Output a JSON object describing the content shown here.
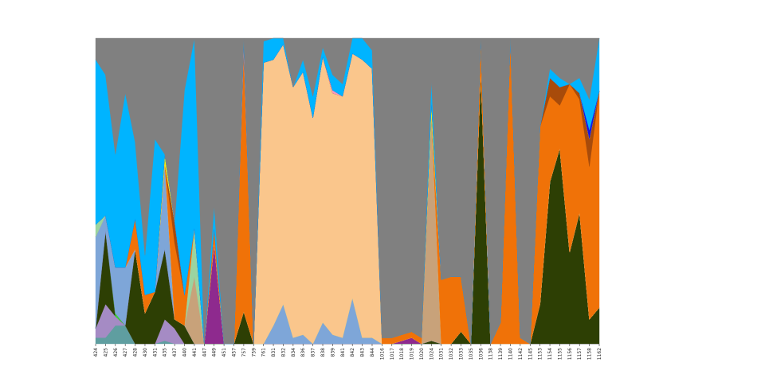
{
  "chart_data": {
    "type": "area",
    "stacked": true,
    "normalized": true,
    "title": "",
    "xlabel": "",
    "ylabel": "",
    "ylim": [
      0,
      1
    ],
    "grid": false,
    "legend": "none",
    "categories": [
      "424",
      "425",
      "426",
      "427",
      "428",
      "430",
      "431",
      "435",
      "437",
      "440",
      "441",
      "447",
      "449",
      "451",
      "457",
      "757",
      "759",
      "761",
      "831",
      "832",
      "834",
      "836",
      "837",
      "838",
      "839",
      "841",
      "842",
      "843",
      "844",
      "1016",
      "1017",
      "1018",
      "1019",
      "1020",
      "1024",
      "1031",
      "1032",
      "1033",
      "1035",
      "1036",
      "1138",
      "1139",
      "1140",
      "1142",
      "1145",
      "1153",
      "1154",
      "1155",
      "1156",
      "1157",
      "1158",
      "1162"
    ],
    "series": [
      {
        "name": "teal",
        "color": "#5f9ea0",
        "values": [
          0.02,
          0.02,
          0.06,
          0.06,
          0.0,
          0.0,
          0.0,
          0.01,
          0.0,
          0.0,
          0.0,
          0.0,
          0.0,
          0.0,
          0.0,
          0.0,
          0.0,
          0.0,
          0.0,
          0.0,
          0.0,
          0.0,
          0.0,
          0.0,
          0.0,
          0.0,
          0.0,
          0.0,
          0.0,
          0.0,
          0.0,
          0.0,
          0.0,
          0.0,
          0.0,
          0.0,
          0.0,
          0.0,
          0.0,
          0.0,
          0.0,
          0.0,
          0.0,
          0.0,
          0.0,
          0.0,
          0.0,
          0.0,
          0.0,
          0.0,
          0.0,
          0.0
        ]
      },
      {
        "name": "lavender",
        "color": "#a58bc4",
        "values": [
          0.03,
          0.11,
          0.03,
          0.0,
          0.0,
          0.0,
          0.0,
          0.07,
          0.05,
          0.0,
          0.0,
          0.0,
          0.0,
          0.0,
          0.0,
          0.0,
          0.0,
          0.0,
          0.0,
          0.0,
          0.0,
          0.0,
          0.0,
          0.0,
          0.0,
          0.0,
          0.0,
          0.0,
          0.0,
          0.0,
          0.0,
          0.0,
          0.0,
          0.0,
          0.0,
          0.0,
          0.0,
          0.0,
          0.0,
          0.0,
          0.0,
          0.0,
          0.0,
          0.0,
          0.0,
          0.0,
          0.0,
          0.0,
          0.0,
          0.0,
          0.0,
          0.0
        ]
      },
      {
        "name": "dark olive",
        "color": "#2d3f04",
        "values": [
          0.0,
          0.24,
          0.0,
          0.0,
          0.31,
          0.1,
          0.17,
          0.23,
          0.03,
          0.06,
          0.0,
          0.0,
          0.0,
          0.0,
          0.0,
          0.11,
          0.0,
          0.0,
          0.0,
          0.0,
          0.0,
          0.0,
          0.0,
          0.0,
          0.0,
          0.0,
          0.0,
          0.0,
          0.0,
          0.0,
          0.0,
          0.0,
          0.0,
          0.0,
          0.01,
          0.0,
          0.0,
          0.04,
          0.0,
          0.89,
          0.0,
          0.0,
          0.0,
          0.0,
          0.0,
          0.13,
          0.53,
          0.64,
          0.3,
          0.43,
          0.08,
          0.13
        ]
      },
      {
        "name": "bright green",
        "color": "#3bd43b",
        "values": [
          0.0,
          0.0,
          0.01,
          0.0,
          0.0,
          0.0,
          0.0,
          0.0,
          0.0,
          0.0,
          0.0,
          0.0,
          0.0,
          0.0,
          0.0,
          0.0,
          0.0,
          0.0,
          0.0,
          0.0,
          0.0,
          0.0,
          0.0,
          0.0,
          0.0,
          0.0,
          0.0,
          0.0,
          0.0,
          0.0,
          0.0,
          0.0,
          0.0,
          0.0,
          0.0,
          0.0,
          0.0,
          0.0,
          0.0,
          0.0,
          0.0,
          0.0,
          0.0,
          0.0,
          0.0,
          0.0,
          0.0,
          0.0,
          0.0,
          0.0,
          0.0,
          0.0
        ]
      },
      {
        "name": "purple",
        "color": "#8e2a8e",
        "values": [
          0.0,
          0.0,
          0.0,
          0.0,
          0.0,
          0.0,
          0.0,
          0.0,
          0.0,
          0.0,
          0.0,
          0.0,
          0.33,
          0.0,
          0.0,
          0.0,
          0.0,
          0.0,
          0.0,
          0.0,
          0.0,
          0.0,
          0.0,
          0.0,
          0.0,
          0.0,
          0.0,
          0.0,
          0.0,
          0.0,
          0.0,
          0.01,
          0.02,
          0.0,
          0.0,
          0.0,
          0.0,
          0.0,
          0.0,
          0.0,
          0.0,
          0.0,
          0.0,
          0.0,
          0.0,
          0.0,
          0.0,
          0.0,
          0.0,
          0.0,
          0.0,
          0.0
        ]
      },
      {
        "name": "steel blue",
        "color": "#7ea6d8",
        "values": [
          0.3,
          0.05,
          0.15,
          0.19,
          0.0,
          0.0,
          0.0,
          0.28,
          0.0,
          0.0,
          0.0,
          0.0,
          0.0,
          0.0,
          0.0,
          0.0,
          0.0,
          0.0,
          0.06,
          0.13,
          0.02,
          0.03,
          0.0,
          0.07,
          0.03,
          0.02,
          0.15,
          0.02,
          0.02,
          0.0,
          0.0,
          0.0,
          0.0,
          0.0,
          0.0,
          0.0,
          0.0,
          0.0,
          0.0,
          0.0,
          0.0,
          0.0,
          0.0,
          0.0,
          0.0,
          0.0,
          0.0,
          0.0,
          0.0,
          0.0,
          0.0,
          0.0
        ]
      },
      {
        "name": "sand",
        "color": "#c8a27a",
        "values": [
          0.0,
          0.0,
          0.0,
          0.0,
          0.0,
          0.0,
          0.0,
          0.0,
          0.0,
          0.0,
          0.22,
          0.0,
          0.0,
          0.0,
          0.0,
          0.0,
          0.0,
          0.0,
          0.0,
          0.0,
          0.0,
          0.0,
          0.0,
          0.0,
          0.0,
          0.0,
          0.0,
          0.0,
          0.0,
          0.0,
          0.0,
          0.0,
          0.0,
          0.0,
          0.74,
          0.0,
          0.0,
          0.0,
          0.0,
          0.0,
          0.0,
          0.0,
          0.0,
          0.0,
          0.0,
          0.0,
          0.0,
          0.0,
          0.0,
          0.0,
          0.0,
          0.0
        ]
      },
      {
        "name": "mint",
        "color": "#9bd4a0",
        "values": [
          0.04,
          0.0,
          0.0,
          0.0,
          0.0,
          0.0,
          0.0,
          0.0,
          0.0,
          0.0,
          0.16,
          0.0,
          0.0,
          0.0,
          0.0,
          0.0,
          0.0,
          0.0,
          0.0,
          0.0,
          0.0,
          0.0,
          0.0,
          0.0,
          0.0,
          0.0,
          0.0,
          0.0,
          0.0,
          0.0,
          0.0,
          0.0,
          0.0,
          0.0,
          0.0,
          0.0,
          0.0,
          0.0,
          0.0,
          0.0,
          0.0,
          0.0,
          0.0,
          0.0,
          0.0,
          0.0,
          0.0,
          0.0,
          0.0,
          0.0,
          0.0,
          0.0
        ]
      },
      {
        "name": "peach",
        "color": "#fac68c",
        "values": [
          0.0,
          0.0,
          0.0,
          0.0,
          0.0,
          0.0,
          0.0,
          0.0,
          0.0,
          0.0,
          0.0,
          0.0,
          0.0,
          0.0,
          0.0,
          0.0,
          0.0,
          0.92,
          0.87,
          0.85,
          0.82,
          0.86,
          0.74,
          0.87,
          0.79,
          0.79,
          0.8,
          0.91,
          0.88,
          0.0,
          0.0,
          0.0,
          0.0,
          0.0,
          0.0,
          0.0,
          0.0,
          0.0,
          0.0,
          0.0,
          0.0,
          0.0,
          0.0,
          0.0,
          0.0,
          0.0,
          0.0,
          0.0,
          0.0,
          0.0,
          0.0,
          0.0
        ]
      },
      {
        "name": "orange",
        "color": "#f07208",
        "values": [
          0.0,
          0.0,
          0.0,
          0.0,
          0.1,
          0.06,
          0.0,
          0.0,
          0.25,
          0.1,
          0.0,
          0.0,
          0.05,
          0.0,
          0.0,
          0.89,
          0.0,
          0.0,
          0.0,
          0.0,
          0.0,
          0.0,
          0.0,
          0.0,
          0.0,
          0.0,
          0.0,
          0.0,
          0.0,
          0.02,
          0.02,
          0.02,
          0.02,
          0.02,
          0.0,
          0.21,
          0.22,
          0.18,
          0.0,
          0.11,
          0.0,
          0.07,
          1.0,
          0.02,
          0.0,
          0.58,
          0.28,
          0.14,
          0.55,
          0.37,
          0.5,
          0.78
        ]
      },
      {
        "name": "rust",
        "color": "#a84b0a",
        "values": [
          0.0,
          0.0,
          0.0,
          0.0,
          0.0,
          0.0,
          0.0,
          0.0,
          0.07,
          0.0,
          0.0,
          0.0,
          0.0,
          0.0,
          0.0,
          0.0,
          0.0,
          0.0,
          0.0,
          0.0,
          0.0,
          0.0,
          0.0,
          0.0,
          0.0,
          0.0,
          0.0,
          0.0,
          0.0,
          0.0,
          0.0,
          0.0,
          0.0,
          0.0,
          0.0,
          0.0,
          0.0,
          0.0,
          0.0,
          0.0,
          0.0,
          0.0,
          0.0,
          0.0,
          0.0,
          0.0,
          0.06,
          0.06,
          0.0,
          0.02,
          0.09,
          0.0
        ]
      },
      {
        "name": "pink",
        "color": "#f49ac2",
        "values": [
          0.0,
          0.0,
          0.0,
          0.0,
          0.0,
          0.0,
          0.0,
          0.0,
          0.0,
          0.0,
          0.0,
          0.0,
          0.0,
          0.0,
          0.0,
          0.03,
          0.0,
          0.0,
          0.0,
          0.0,
          0.0,
          0.0,
          0.0,
          0.0,
          0.01,
          0.0,
          0.0,
          0.0,
          0.0,
          0.0,
          0.0,
          0.0,
          0.0,
          0.0,
          0.0,
          0.0,
          0.0,
          0.0,
          0.0,
          0.0,
          0.0,
          0.0,
          0.0,
          0.0,
          0.0,
          0.0,
          0.0,
          0.0,
          0.0,
          0.0,
          0.0,
          0.0
        ]
      },
      {
        "name": "yellow",
        "color": "#f4f40a",
        "values": [
          0.0,
          0.0,
          0.0,
          0.0,
          0.0,
          0.0,
          0.0,
          0.03,
          0.0,
          0.0,
          0.0,
          0.0,
          0.0,
          0.0,
          0.0,
          0.0,
          0.0,
          0.0,
          0.0,
          0.0,
          0.0,
          0.0,
          0.0,
          0.0,
          0.0,
          0.0,
          0.0,
          0.0,
          0.0,
          0.0,
          0.0,
          0.0,
          0.0,
          0.0,
          0.04,
          0.0,
          0.0,
          0.0,
          0.0,
          0.0,
          0.0,
          0.0,
          0.0,
          0.0,
          0.0,
          0.0,
          0.0,
          0.0,
          0.0,
          0.0,
          0.0,
          0.0
        ]
      },
      {
        "name": "blue",
        "color": "#1414e6",
        "values": [
          0.0,
          0.0,
          0.0,
          0.0,
          0.0,
          0.0,
          0.0,
          0.0,
          0.0,
          0.0,
          0.0,
          0.0,
          0.0,
          0.0,
          0.0,
          0.0,
          0.0,
          0.0,
          0.0,
          0.0,
          0.0,
          0.0,
          0.0,
          0.0,
          0.0,
          0.0,
          0.0,
          0.0,
          0.0,
          0.0,
          0.0,
          0.0,
          0.0,
          0.0,
          0.0,
          0.0,
          0.0,
          0.0,
          0.0,
          0.0,
          0.0,
          0.0,
          0.0,
          0.0,
          0.0,
          0.0,
          0.0,
          0.0,
          0.0,
          0.0,
          0.03,
          0.0
        ]
      },
      {
        "name": "sky blue",
        "color": "#00b4ff",
        "values": [
          0.54,
          0.46,
          0.37,
          0.57,
          0.25,
          0.13,
          0.5,
          0.0,
          0.0,
          0.67,
          0.62,
          0.0,
          0.07,
          0.0,
          0.0,
          0.01,
          0.0,
          0.07,
          0.07,
          0.02,
          0.0,
          0.04,
          0.07,
          0.03,
          0.05,
          0.04,
          0.05,
          0.07,
          0.06,
          0.0,
          0.0,
          0.0,
          0.0,
          0.0,
          0.07,
          0.0,
          0.0,
          0.0,
          0.0,
          0.0,
          0.0,
          0.0,
          0.0,
          0.0,
          0.0,
          0.0,
          0.03,
          0.03,
          0.0,
          0.05,
          0.1,
          0.19
        ]
      },
      {
        "name": "gray",
        "color": "#808080",
        "values": [
          0.07,
          0.12,
          0.38,
          0.18,
          0.34,
          0.71,
          0.33,
          0.38,
          0.6,
          0.17,
          0.0,
          1.0,
          0.55,
          1.0,
          1.0,
          0.0,
          1.0,
          0.01,
          0.0,
          0.0,
          0.16,
          0.07,
          0.19,
          0.03,
          0.12,
          0.15,
          0.0,
          0.0,
          0.04,
          0.98,
          0.98,
          0.97,
          0.96,
          0.98,
          0.14,
          0.79,
          0.78,
          0.78,
          1.0,
          0.0,
          1.0,
          0.93,
          0.0,
          0.98,
          1.0,
          0.29,
          0.1,
          0.13,
          0.15,
          0.13,
          0.2,
          0.0
        ]
      }
    ]
  }
}
